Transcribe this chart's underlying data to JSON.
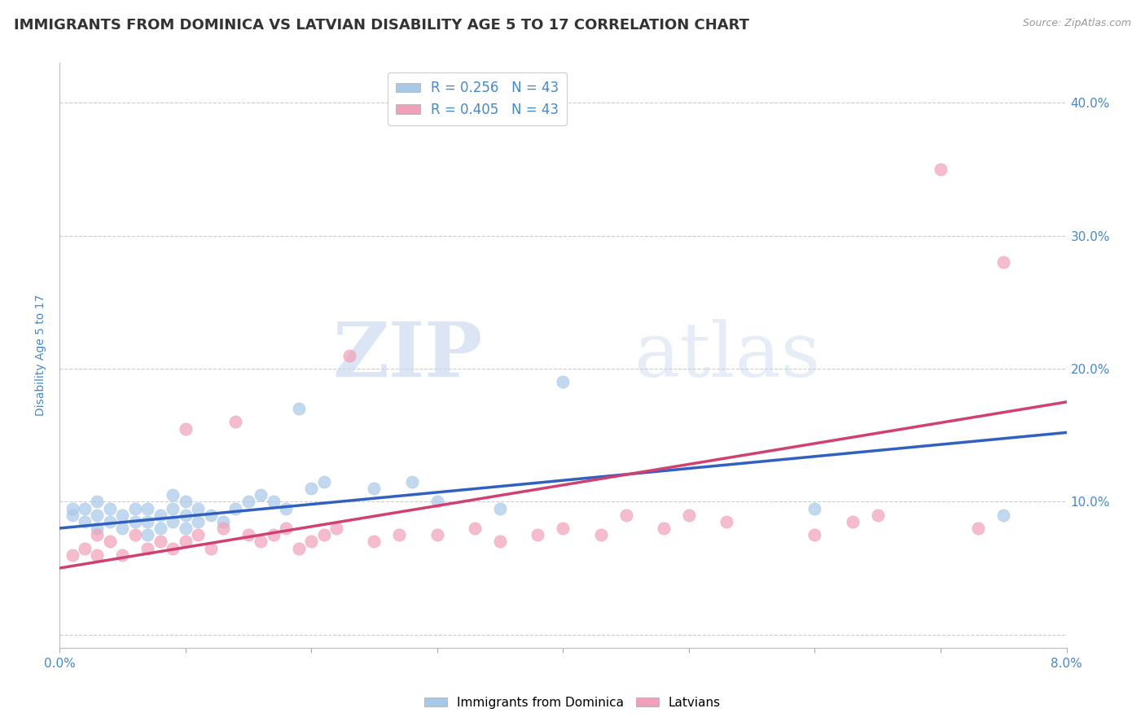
{
  "title": "IMMIGRANTS FROM DOMINICA VS LATVIAN DISABILITY AGE 5 TO 17 CORRELATION CHART",
  "source": "Source: ZipAtlas.com",
  "ylabel": "Disability Age 5 to 17",
  "x_min": 0.0,
  "x_max": 0.08,
  "y_min": -0.01,
  "y_max": 0.43,
  "x_ticks": [
    0.0,
    0.01,
    0.02,
    0.03,
    0.04,
    0.05,
    0.06,
    0.07,
    0.08
  ],
  "y_ticks": [
    0.0,
    0.1,
    0.2,
    0.3,
    0.4
  ],
  "y_tick_labels": [
    "",
    "10.0%",
    "20.0%",
    "30.0%",
    "40.0%"
  ],
  "blue_scatter_x": [
    0.001,
    0.001,
    0.002,
    0.002,
    0.003,
    0.003,
    0.003,
    0.004,
    0.004,
    0.005,
    0.005,
    0.006,
    0.006,
    0.007,
    0.007,
    0.007,
    0.008,
    0.008,
    0.009,
    0.009,
    0.009,
    0.01,
    0.01,
    0.01,
    0.011,
    0.011,
    0.012,
    0.013,
    0.014,
    0.015,
    0.016,
    0.017,
    0.018,
    0.019,
    0.02,
    0.021,
    0.025,
    0.028,
    0.03,
    0.035,
    0.04,
    0.06,
    0.075
  ],
  "blue_scatter_y": [
    0.09,
    0.095,
    0.085,
    0.095,
    0.08,
    0.09,
    0.1,
    0.085,
    0.095,
    0.08,
    0.09,
    0.085,
    0.095,
    0.075,
    0.085,
    0.095,
    0.08,
    0.09,
    0.085,
    0.095,
    0.105,
    0.08,
    0.09,
    0.1,
    0.085,
    0.095,
    0.09,
    0.085,
    0.095,
    0.1,
    0.105,
    0.1,
    0.095,
    0.17,
    0.11,
    0.115,
    0.11,
    0.115,
    0.1,
    0.095,
    0.19,
    0.095,
    0.09
  ],
  "pink_scatter_x": [
    0.001,
    0.002,
    0.003,
    0.003,
    0.004,
    0.005,
    0.006,
    0.007,
    0.008,
    0.009,
    0.01,
    0.01,
    0.011,
    0.012,
    0.013,
    0.014,
    0.015,
    0.016,
    0.017,
    0.018,
    0.019,
    0.02,
    0.021,
    0.022,
    0.023,
    0.025,
    0.027,
    0.03,
    0.033,
    0.035,
    0.038,
    0.04,
    0.043,
    0.045,
    0.048,
    0.05,
    0.053,
    0.06,
    0.063,
    0.065,
    0.07,
    0.073,
    0.075
  ],
  "pink_scatter_y": [
    0.06,
    0.065,
    0.06,
    0.075,
    0.07,
    0.06,
    0.075,
    0.065,
    0.07,
    0.065,
    0.07,
    0.155,
    0.075,
    0.065,
    0.08,
    0.16,
    0.075,
    0.07,
    0.075,
    0.08,
    0.065,
    0.07,
    0.075,
    0.08,
    0.21,
    0.07,
    0.075,
    0.075,
    0.08,
    0.07,
    0.075,
    0.08,
    0.075,
    0.09,
    0.08,
    0.09,
    0.085,
    0.075,
    0.085,
    0.09,
    0.35,
    0.08,
    0.28
  ],
  "blue_trend_x": [
    0.0,
    0.08
  ],
  "blue_trend_y": [
    0.08,
    0.152
  ],
  "pink_trend_x": [
    0.0,
    0.08
  ],
  "pink_trend_y": [
    0.05,
    0.175
  ],
  "blue_color": "#a8c8e8",
  "pink_color": "#f0a0b8",
  "blue_line_color": "#3060c0",
  "pink_line_color": "#d04070",
  "background_color": "#ffffff",
  "grid_color": "#cccccc",
  "title_color": "#333333",
  "tick_label_color": "#4488cc",
  "axis_label_color": "#4488cc",
  "title_fontsize": 13,
  "axis_label_fontsize": 10,
  "tick_fontsize": 11,
  "legend_label_blue": "R = 0.256   N = 43",
  "legend_label_pink": "R = 0.405   N = 43",
  "bottom_legend_blue": "Immigrants from Dominica",
  "bottom_legend_pink": "Latvians"
}
